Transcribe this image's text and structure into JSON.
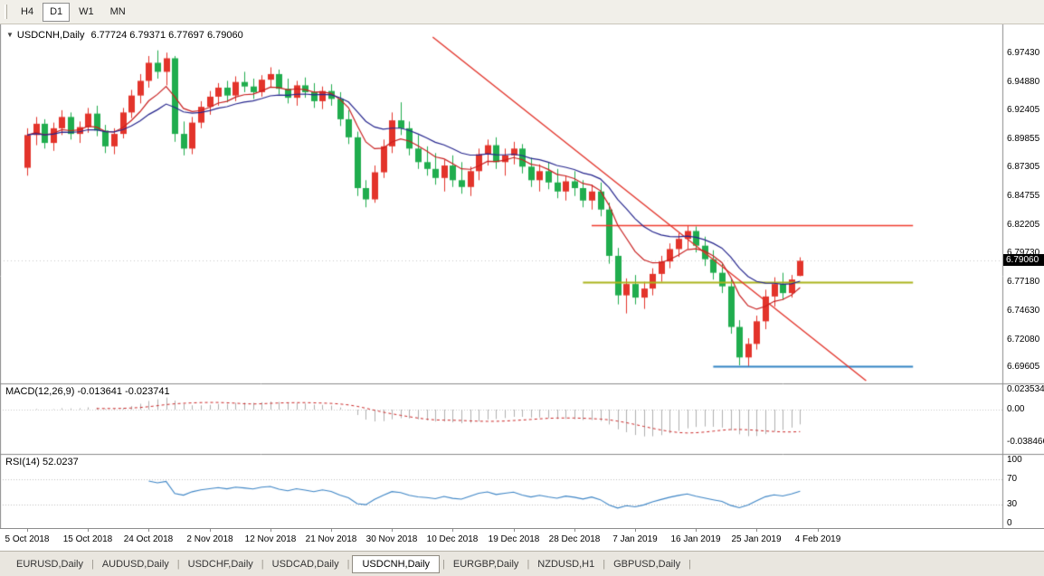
{
  "icons": {
    "chart_marker": "▼"
  },
  "toolbar": {
    "timeframes": [
      {
        "label": "H4",
        "active": false
      },
      {
        "label": "D1",
        "active": true
      },
      {
        "label": "W1",
        "active": false
      },
      {
        "label": "MN",
        "active": false
      }
    ]
  },
  "chart": {
    "title": {
      "symbol": "USDCNH,Daily",
      "ohlc": "6.77724 6.79371 6.77697 6.79060"
    },
    "price_badge": "6.79060",
    "price_axis_labels": [
      "6.97430",
      "6.94880",
      "6.92405",
      "6.89855",
      "6.87305",
      "6.84755",
      "6.82205",
      "6.79730",
      "6.77180",
      "6.74630",
      "6.72080",
      "6.69605"
    ]
  },
  "chart_data": {
    "type": "candlestick",
    "symbol": "USDCNH",
    "timeframe": "Daily",
    "title": "USDCNH,Daily",
    "y_range": [
      6.684,
      7.0
    ],
    "x_labels": [
      "5 Oct 2018",
      "15 Oct 2018",
      "24 Oct 2018",
      "2 Nov 2018",
      "12 Nov 2018",
      "21 Nov 2018",
      "30 Nov 2018",
      "10 Dec 2018",
      "19 Dec 2018",
      "28 Dec 2018",
      "7 Jan 2019",
      "16 Jan 2019",
      "25 Jan 2019",
      "4 Feb 2019"
    ],
    "candles_per_x_label": 7,
    "candles": [
      [
        6.873,
        6.908,
        6.866,
        6.902
      ],
      [
        6.902,
        6.918,
        6.893,
        6.912
      ],
      [
        6.912,
        6.916,
        6.89,
        6.895
      ],
      [
        6.895,
        6.913,
        6.888,
        6.908
      ],
      [
        6.908,
        6.924,
        6.902,
        6.918
      ],
      [
        6.918,
        6.922,
        6.898,
        6.903
      ],
      [
        6.903,
        6.914,
        6.895,
        6.909
      ],
      [
        6.909,
        6.926,
        6.904,
        6.921
      ],
      [
        6.921,
        6.928,
        6.901,
        6.906
      ],
      [
        6.906,
        6.911,
        6.886,
        6.892
      ],
      [
        6.892,
        6.908,
        6.885,
        6.903
      ],
      [
        6.903,
        6.926,
        6.899,
        6.922
      ],
      [
        6.922,
        6.942,
        6.917,
        6.937
      ],
      [
        6.937,
        6.956,
        6.93,
        6.95
      ],
      [
        6.95,
        6.972,
        6.944,
        6.966
      ],
      [
        6.966,
        6.977,
        6.952,
        6.958
      ],
      [
        6.958,
        6.975,
        6.946,
        6.97
      ],
      [
        6.97,
        6.972,
        6.896,
        6.903
      ],
      [
        6.903,
        6.914,
        6.884,
        6.89
      ],
      [
        6.89,
        6.918,
        6.885,
        6.913
      ],
      [
        6.913,
        6.932,
        6.908,
        6.927
      ],
      [
        6.927,
        6.941,
        6.92,
        6.936
      ],
      [
        6.936,
        6.948,
        6.928,
        6.944
      ],
      [
        6.944,
        6.95,
        6.931,
        6.937
      ],
      [
        6.937,
        6.954,
        6.932,
        6.949
      ],
      [
        6.949,
        6.958,
        6.94,
        6.945
      ],
      [
        6.945,
        6.952,
        6.934,
        6.94
      ],
      [
        6.94,
        6.955,
        6.936,
        6.951
      ],
      [
        6.951,
        6.962,
        6.944,
        6.956
      ],
      [
        6.956,
        6.96,
        6.938,
        6.943
      ],
      [
        6.943,
        6.952,
        6.93,
        6.935
      ],
      [
        6.935,
        6.95,
        6.928,
        6.946
      ],
      [
        6.946,
        6.953,
        6.935,
        6.94
      ],
      [
        6.94,
        6.948,
        6.926,
        6.932
      ],
      [
        6.932,
        6.945,
        6.925,
        6.941
      ],
      [
        6.941,
        6.947,
        6.928,
        6.934
      ],
      [
        6.934,
        6.94,
        6.91,
        6.916
      ],
      [
        6.916,
        6.924,
        6.894,
        6.9
      ],
      [
        6.9,
        6.905,
        6.848,
        6.855
      ],
      [
        6.855,
        6.862,
        6.838,
        6.845
      ],
      [
        6.845,
        6.875,
        6.842,
        6.869
      ],
      [
        6.869,
        6.898,
        6.864,
        6.892
      ],
      [
        6.892,
        6.922,
        6.886,
        6.915
      ],
      [
        6.915,
        6.931,
        6.902,
        6.908
      ],
      [
        6.908,
        6.914,
        6.884,
        6.89
      ],
      [
        6.89,
        6.902,
        6.872,
        6.878
      ],
      [
        6.878,
        6.892,
        6.866,
        6.872
      ],
      [
        6.872,
        6.886,
        6.858,
        6.864
      ],
      [
        6.864,
        6.88,
        6.852,
        6.875
      ],
      [
        6.875,
        6.884,
        6.856,
        6.862
      ],
      [
        6.862,
        6.878,
        6.85,
        6.856
      ],
      [
        6.856,
        6.874,
        6.848,
        6.87
      ],
      [
        6.87,
        6.89,
        6.862,
        6.885
      ],
      [
        6.885,
        6.898,
        6.875,
        6.893
      ],
      [
        6.893,
        6.9,
        6.872,
        6.878
      ],
      [
        6.878,
        6.89,
        6.866,
        6.884
      ],
      [
        6.884,
        6.896,
        6.876,
        6.89
      ],
      [
        6.89,
        6.894,
        6.868,
        6.874
      ],
      [
        6.874,
        6.882,
        6.856,
        6.862
      ],
      [
        6.862,
        6.876,
        6.852,
        6.87
      ],
      [
        6.87,
        6.878,
        6.854,
        6.86
      ],
      [
        6.86,
        6.872,
        6.846,
        6.852
      ],
      [
        6.852,
        6.866,
        6.844,
        6.861
      ],
      [
        6.861,
        6.87,
        6.848,
        6.855
      ],
      [
        6.855,
        6.862,
        6.838,
        6.844
      ],
      [
        6.844,
        6.858,
        6.836,
        6.852
      ],
      [
        6.852,
        6.86,
        6.83,
        6.836
      ],
      [
        6.836,
        6.842,
        6.788,
        6.795
      ],
      [
        6.795,
        6.802,
        6.752,
        6.76
      ],
      [
        6.76,
        6.775,
        6.744,
        6.77
      ],
      [
        6.77,
        6.778,
        6.752,
        6.758
      ],
      [
        6.758,
        6.772,
        6.748,
        6.766
      ],
      [
        6.766,
        6.784,
        6.76,
        6.779
      ],
      [
        6.779,
        6.795,
        6.772,
        6.79
      ],
      [
        6.79,
        6.806,
        6.784,
        6.801
      ],
      [
        6.801,
        6.815,
        6.794,
        6.81
      ],
      [
        6.81,
        6.822,
        6.801,
        6.817
      ],
      [
        6.817,
        6.821,
        6.798,
        6.804
      ],
      [
        6.804,
        6.812,
        6.786,
        6.792
      ],
      [
        6.792,
        6.8,
        6.774,
        6.78
      ],
      [
        6.78,
        6.788,
        6.762,
        6.768
      ],
      [
        6.768,
        6.774,
        6.726,
        6.732
      ],
      [
        6.732,
        6.738,
        6.698,
        6.705
      ],
      [
        6.705,
        6.722,
        6.697,
        6.717
      ],
      [
        6.717,
        6.742,
        6.712,
        6.737
      ],
      [
        6.737,
        6.765,
        6.73,
        6.759
      ],
      [
        6.759,
        6.776,
        6.75,
        6.77
      ],
      [
        6.77,
        6.78,
        6.756,
        6.762
      ],
      [
        6.762,
        6.778,
        6.758,
        6.774
      ],
      [
        6.77724,
        6.79371,
        6.77697,
        6.7906
      ]
    ],
    "colors": {
      "up": "#e3342b",
      "down": "#20ad4e",
      "ma_fast": "#c92020",
      "ma_slow": "#26268e",
      "trendline": "#e3342b",
      "hline_red": "#ef3b2d",
      "hline_yellow": "#abb41c",
      "hline_blue": "#3183c4",
      "macd_histogram": "#b0b0b0",
      "macd_signal": "#cc2929",
      "rsi_line": "#3d85c6",
      "badge_bg": "#000000"
    },
    "overlays": {
      "moving_averages": [
        {
          "name": "ma-fast",
          "period": 8
        },
        {
          "name": "ma-slow",
          "period": 17
        }
      ],
      "trendline": {
        "from_index": 46.7,
        "from_price": 6.9888,
        "to_index": 96.6,
        "to_price": 6.6844
      },
      "hlines": [
        {
          "price": 6.822,
          "from_index": 65,
          "to_index": 102,
          "color_key": "hline_red",
          "width": 1.4
        },
        {
          "price": 6.7718,
          "from_index": 64,
          "to_index": 102,
          "color_key": "hline_yellow",
          "width": 2
        },
        {
          "price": 6.6975,
          "from_index": 79,
          "to_index": 102,
          "color_key": "hline_blue",
          "width": 2.2
        }
      ]
    },
    "indicators": {
      "macd": {
        "display": "MACD(12,26,9) -0.013641 -0.023741",
        "fast": 12,
        "slow": 26,
        "signal": 9,
        "axis_labels": [
          "0.023534",
          "0.00",
          "-0.038466"
        ]
      },
      "rsi": {
        "display": "RSI(14) 52.0237",
        "period": 14,
        "levels": [
          70,
          30
        ],
        "axis_labels": [
          "100",
          "70",
          "30",
          "0"
        ]
      }
    }
  },
  "bottom_tabs": {
    "separator": "|",
    "items": [
      {
        "label": "EURUSD,Daily",
        "active": false
      },
      {
        "label": "AUDUSD,Daily",
        "active": false
      },
      {
        "label": "USDCHF,Daily",
        "active": false
      },
      {
        "label": "USDCAD,Daily",
        "active": false
      },
      {
        "label": "USDCNH,Daily",
        "active": true
      },
      {
        "label": "EURGBP,Daily",
        "active": false
      },
      {
        "label": "NZDUSD,H1",
        "active": false
      },
      {
        "label": "GBPUSD,Daily",
        "active": false
      }
    ]
  }
}
